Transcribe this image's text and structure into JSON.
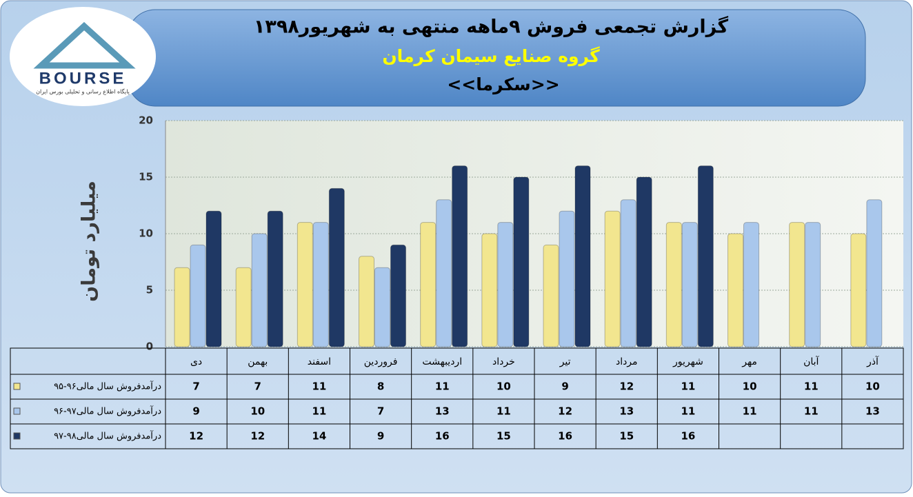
{
  "header": {
    "logo_text": "BOURSE",
    "logo_subtitle": "پایگاه اطلاع رسانی و تحلیلی بورس ایران",
    "title": "گزارش تجمعی فروش ۹ماهه منتهی به شهریور۱۳۹۸",
    "subtitle": "گروه صنایع سیمان کرمان",
    "symbol": "<<سکرما>>"
  },
  "chart_data": {
    "type": "bar",
    "y_label": "میلیارد تومان",
    "categories": [
      "دی",
      "بهمن",
      "اسفند",
      "فروردین",
      "اردیبهشت",
      "خرداد",
      "تیر",
      "مرداد",
      "شهریور",
      "مهر",
      "آبان",
      "آذر"
    ],
    "series": [
      {
        "name": "درآمدفروش سال مالی۹۶-۹۵",
        "color": "#f2e68f",
        "values": [
          7,
          7,
          11,
          8,
          11,
          10,
          9,
          12,
          11,
          10,
          11,
          10
        ]
      },
      {
        "name": "درآمدفروش سال مالی۹۷-۹۶",
        "color": "#a9c7ec",
        "values": [
          9,
          10,
          11,
          7,
          13,
          11,
          12,
          13,
          11,
          11,
          11,
          13
        ]
      },
      {
        "name": "درآمدفروش سال مالی۹۸-۹۷",
        "color": "#1f3864",
        "values": [
          12,
          12,
          14,
          9,
          16,
          15,
          16,
          15,
          16,
          null,
          null,
          null
        ]
      }
    ],
    "ylim": [
      0,
      20
    ],
    "yticks": [
      0,
      5,
      10,
      15,
      20
    ],
    "grid": true
  }
}
